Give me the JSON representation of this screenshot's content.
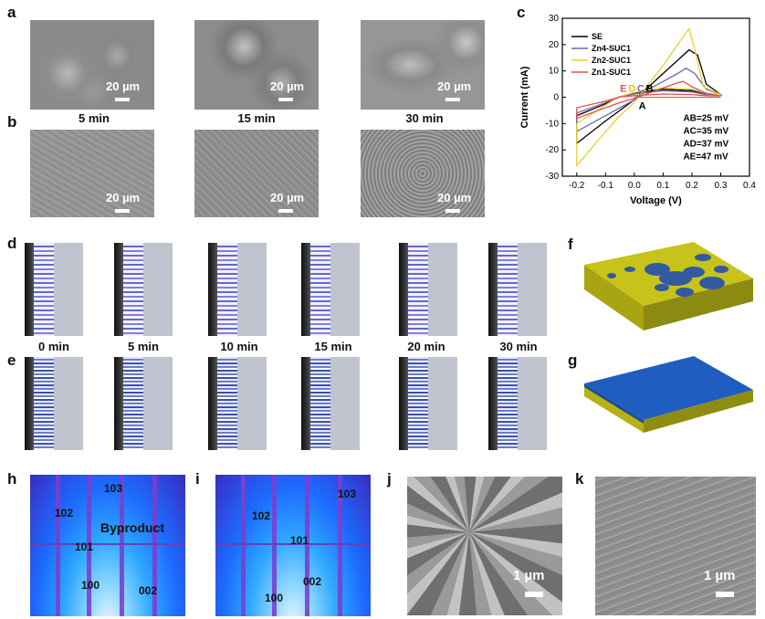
{
  "panels": {
    "a": "a",
    "b": "b",
    "c": "c",
    "d": "d",
    "e": "e",
    "f": "f",
    "g": "g",
    "h": "h",
    "i": "i",
    "j": "j",
    "k": "k"
  },
  "sem_scale": {
    "twenty": "20 µm",
    "one": "1 µm"
  },
  "sem_captions": [
    "5 min",
    "15 min",
    "30 min"
  ],
  "cross_captions": [
    "0 min",
    "5 min",
    "10 min",
    "15 min",
    "20 min",
    "30 min"
  ],
  "xrd_h": {
    "labels": [
      "103",
      "102",
      "101",
      "100",
      "002"
    ],
    "byproduct": "Byproduct"
  },
  "xrd_i": {
    "labels": [
      "102",
      "103",
      "101",
      "002",
      "100"
    ]
  },
  "chart_data": {
    "type": "line",
    "xlabel": "Voltage (V)",
    "ylabel": "Current (mA)",
    "xlim": [
      -0.25,
      0.4
    ],
    "ylim": [
      -30,
      30
    ],
    "xticks": [
      -0.2,
      -0.1,
      0.0,
      0.1,
      0.2,
      0.3,
      0.4
    ],
    "yticks": [
      -30,
      -20,
      -10,
      0,
      10,
      20,
      30
    ],
    "xtick_labels": [
      "-0.2",
      "-0.1",
      "0.0",
      "0.1",
      "0.2",
      "0.3",
      "0.4"
    ],
    "ytick_labels": [
      "-30",
      "-20",
      "-10",
      "0",
      "10",
      "20",
      "30"
    ],
    "series": [
      {
        "name": "SE",
        "color": "#000000",
        "x": [
          -0.2,
          -0.1,
          -0.05,
          0.0,
          0.05,
          0.1,
          0.15,
          0.19,
          0.22,
          0.25,
          0.3,
          0.25,
          0.2,
          0.1,
          0.0,
          -0.05,
          -0.1,
          -0.2
        ],
        "y": [
          -17.5,
          -9,
          -5,
          -1,
          4,
          9,
          14,
          18,
          16,
          5,
          1,
          1.2,
          2.5,
          3,
          1.5,
          0.2,
          -2.5,
          -7
        ]
      },
      {
        "name": "Zn4-SUC1",
        "color": "#6a6aa8",
        "x": [
          -0.2,
          -0.1,
          -0.05,
          0.0,
          0.05,
          0.1,
          0.15,
          0.18,
          0.21,
          0.25,
          0.3,
          0.25,
          0.2,
          0.1,
          0.0,
          -0.05,
          -0.1,
          -0.2
        ],
        "y": [
          -13,
          -7,
          -4,
          -1,
          3,
          6,
          9,
          11,
          9,
          3,
          1,
          1,
          2,
          2.5,
          1.2,
          0.2,
          -2,
          -6
        ]
      },
      {
        "name": "Zn2-SUC1",
        "color": "#e8d030",
        "x": [
          -0.2,
          -0.1,
          -0.05,
          0.0,
          0.05,
          0.1,
          0.15,
          0.19,
          0.21,
          0.24,
          0.3,
          0.25,
          0.2,
          0.1,
          0.0,
          -0.05,
          -0.1,
          -0.2
        ],
        "y": [
          -26,
          -13,
          -7,
          -2,
          5,
          12,
          20,
          26,
          18,
          4,
          1,
          1.5,
          3,
          3.5,
          1.8,
          0.3,
          -3,
          -10
        ]
      },
      {
        "name": "Zn1-SUC1",
        "color": "#e05050",
        "x": [
          -0.2,
          -0.1,
          -0.05,
          0.0,
          0.05,
          0.1,
          0.15,
          0.17,
          0.2,
          0.25,
          0.3,
          0.25,
          0.2,
          0.1,
          0.0,
          -0.05,
          -0.1,
          -0.2
        ],
        "y": [
          -8,
          -4,
          -2,
          -0.5,
          1.5,
          3.5,
          5.5,
          6,
          4,
          1.5,
          0.5,
          0.6,
          1,
          1.2,
          0.6,
          0.1,
          -1.5,
          -4
        ]
      }
    ],
    "point_labels": [
      "E",
      "D",
      "C",
      "B",
      "A"
    ],
    "point_label_colors": [
      "#e05050",
      "#e8c020",
      "#6a6aa8",
      "#000000",
      "#000000"
    ],
    "annotations": [
      "AB=25 mV",
      "AC=35 mV",
      "AD=37 mV",
      "AE=47 mV"
    ]
  }
}
